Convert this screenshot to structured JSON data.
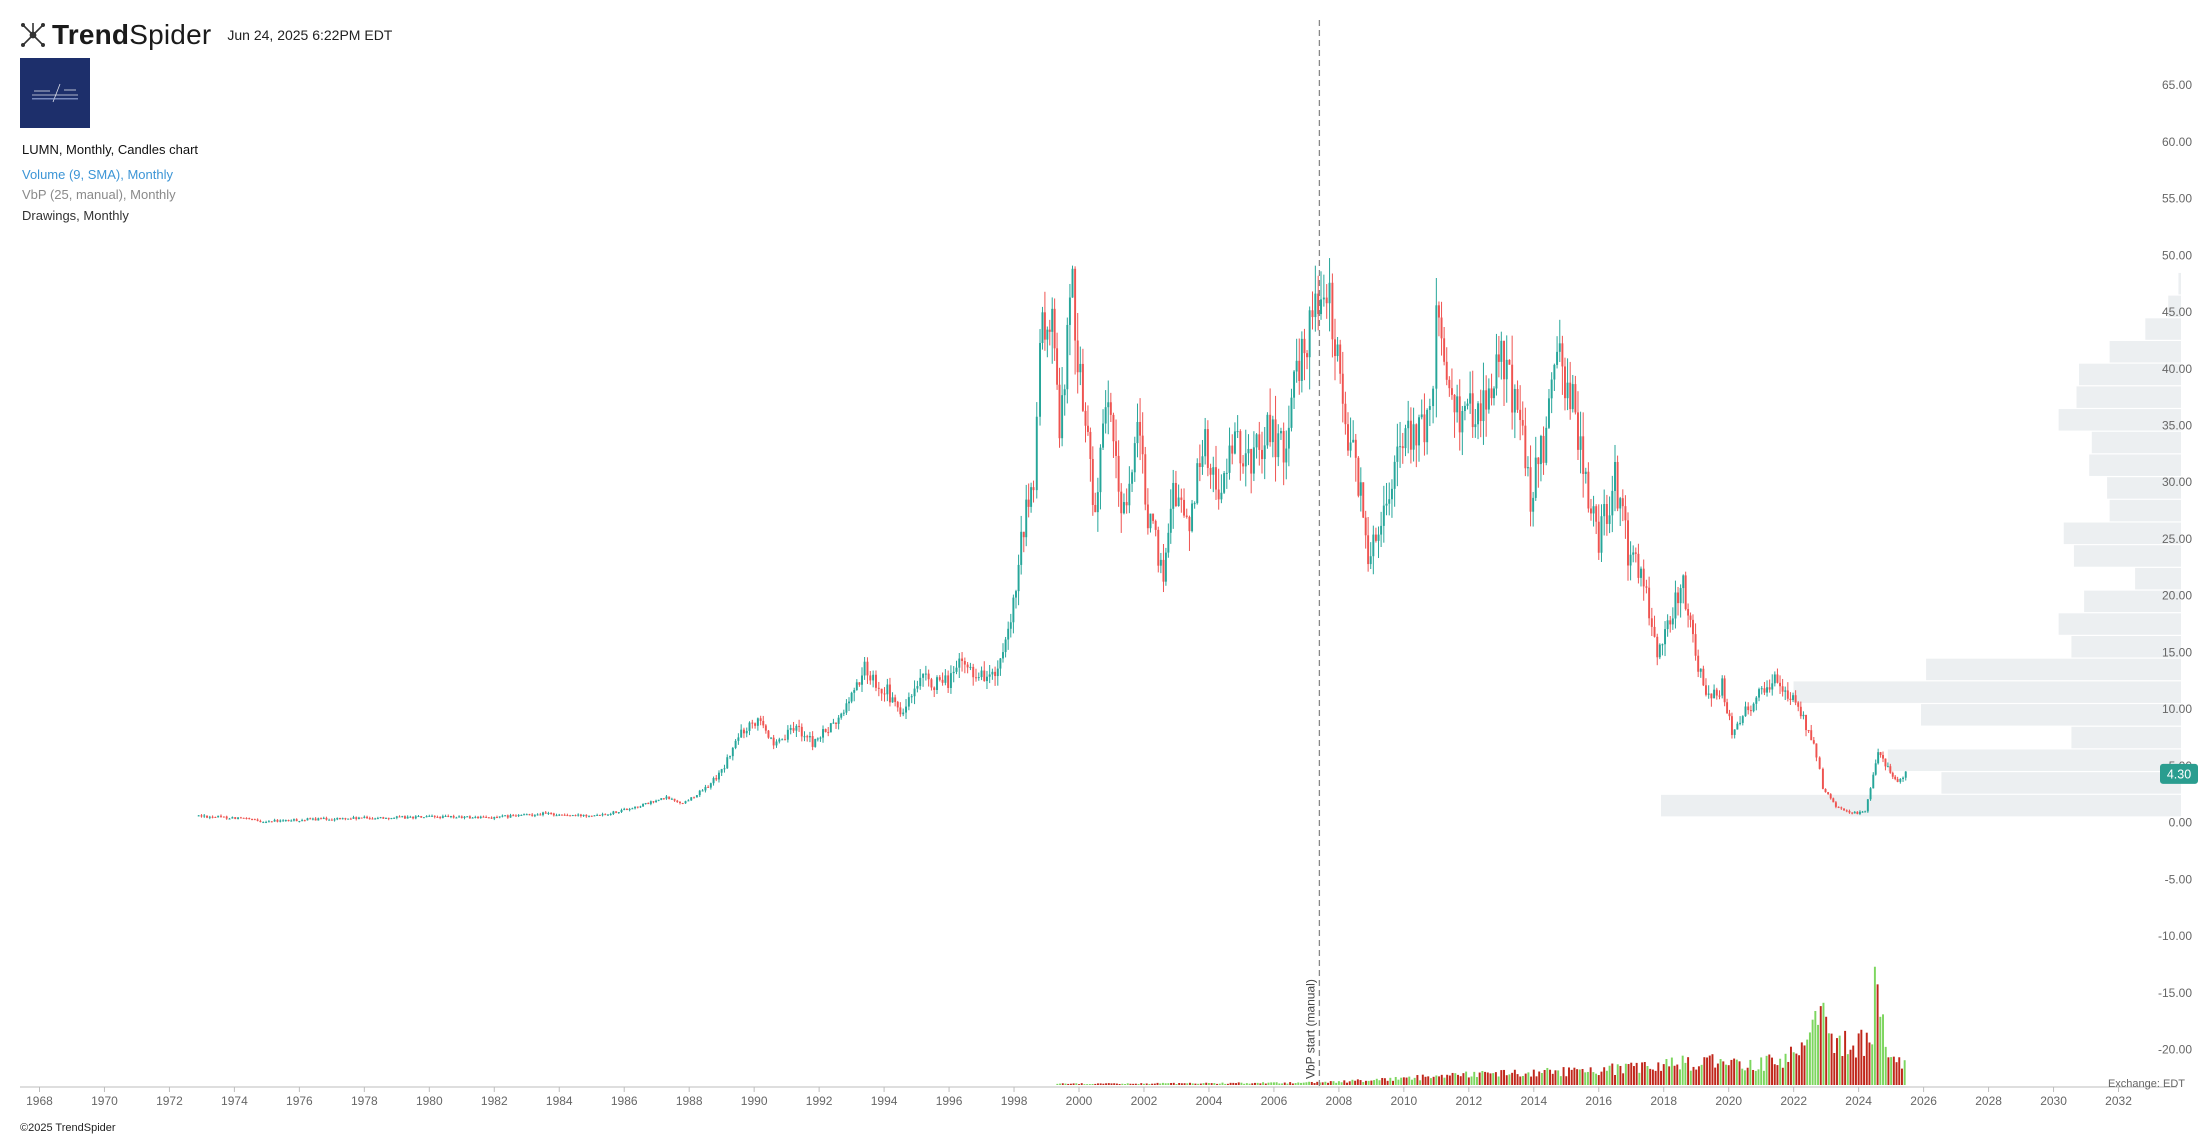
{
  "header": {
    "brand_prefix": "Trend",
    "brand_suffix": "Spider",
    "timestamp": "Jun 24, 2025 6:22PM EDT",
    "logo_icon": "trendspider-logo-icon"
  },
  "legend": {
    "main": "LUMN, Monthly, Candles chart",
    "volume": "Volume (9, SMA), Monthly",
    "vbp": "VbP (25, manual), Monthly",
    "drawings": "Drawings, Monthly"
  },
  "footer": {
    "copyright": "©2025 TrendSpider",
    "exchange": "Exchange: EDT"
  },
  "vbp_marker": {
    "label": "VbP start (manual)",
    "date": 2007.4
  },
  "colors": {
    "up": "#26a69a",
    "down": "#ef5350",
    "vol_up": "#7dd65f",
    "vol_down": "#c0261a",
    "vbp": "#eceff1",
    "price_badge": "#2a9d8f"
  },
  "chart_data": {
    "type": "candlestick",
    "ticker": "LUMN",
    "interval": "Monthly",
    "last_price": "4.30",
    "xlim": [
      1967.4,
      2033.8
    ],
    "ylim": [
      -23.3,
      72.5
    ],
    "x_ticks": [
      "1968",
      "1970",
      "1972",
      "1974",
      "1976",
      "1978",
      "1980",
      "1982",
      "1984",
      "1986",
      "1988",
      "1990",
      "1992",
      "1994",
      "1996",
      "1998",
      "2000",
      "2002",
      "2004",
      "2006",
      "2008",
      "2010",
      "2012",
      "2014",
      "2016",
      "2018",
      "2020",
      "2022",
      "2024",
      "2026",
      "2028",
      "2030",
      "2032"
    ],
    "y_ticks": [
      "65.00",
      "60.00",
      "55.00",
      "50.00",
      "45.00",
      "40.00",
      "35.00",
      "30.00",
      "25.00",
      "20.00",
      "15.00",
      "10.00",
      "5.00",
      "0.00",
      "-5.00",
      "-10.00",
      "-15.00",
      "-20.00"
    ],
    "price_path": [
      [
        1972.9,
        0.6
      ],
      [
        1973.5,
        0.5
      ],
      [
        1974.2,
        0.4
      ],
      [
        1974.8,
        0.1
      ],
      [
        1975.5,
        0.15
      ],
      [
        1976.5,
        0.3
      ],
      [
        1978,
        0.4
      ],
      [
        1980,
        0.5
      ],
      [
        1982,
        0.45
      ],
      [
        1983.5,
        0.8
      ],
      [
        1984.5,
        0.6
      ],
      [
        1985.5,
        0.8
      ],
      [
        1986.5,
        1.5
      ],
      [
        1987.3,
        2.2
      ],
      [
        1987.8,
        1.7
      ],
      [
        1988.5,
        3
      ],
      [
        1989,
        4.5
      ],
      [
        1989.6,
        8
      ],
      [
        1990.2,
        9.5
      ],
      [
        1990.6,
        6.5
      ],
      [
        1991.3,
        8.5
      ],
      [
        1991.8,
        7
      ],
      [
        1992.6,
        9
      ],
      [
        1993.4,
        13.5
      ],
      [
        1994.1,
        11.5
      ],
      [
        1994.5,
        9.5
      ],
      [
        1995.2,
        12.5
      ],
      [
        1995.8,
        12
      ],
      [
        1996.4,
        14
      ],
      [
        1997,
        13
      ],
      [
        1997.5,
        13
      ],
      [
        1997.9,
        17
      ],
      [
        1998.3,
        26
      ],
      [
        1998.6,
        30
      ],
      [
        1998.8,
        42
      ],
      [
        1999.1,
        45
      ],
      [
        1999.4,
        36
      ],
      [
        1999.8,
        47
      ],
      [
        2000.2,
        35
      ],
      [
        2000.5,
        28
      ],
      [
        2000.9,
        37
      ],
      [
        2001.3,
        27
      ],
      [
        2001.8,
        34
      ],
      [
        2002.2,
        26
      ],
      [
        2002.6,
        22
      ],
      [
        2002.9,
        30
      ],
      [
        2003.4,
        26
      ],
      [
        2003.8,
        34
      ],
      [
        2004.3,
        29
      ],
      [
        2004.8,
        33
      ],
      [
        2005.3,
        32
      ],
      [
        2005.8,
        35
      ],
      [
        2006.3,
        33
      ],
      [
        2006.7,
        39
      ],
      [
        2007.1,
        44
      ],
      [
        2007.45,
        48
      ],
      [
        2007.8,
        44
      ],
      [
        2008.2,
        36
      ],
      [
        2008.6,
        30
      ],
      [
        2008.9,
        24
      ],
      [
        2009.3,
        27
      ],
      [
        2009.8,
        33
      ],
      [
        2010.3,
        34
      ],
      [
        2010.8,
        35
      ],
      [
        2011.0,
        44
      ],
      [
        2011.4,
        40
      ],
      [
        2011.8,
        35
      ],
      [
        2012.2,
        37
      ],
      [
        2012.7,
        38
      ],
      [
        2013.0,
        41
      ],
      [
        2013.5,
        37
      ],
      [
        2013.9,
        29
      ],
      [
        2014.3,
        33
      ],
      [
        2014.8,
        41
      ],
      [
        2015.2,
        37
      ],
      [
        2015.6,
        30
      ],
      [
        2016.0,
        25
      ],
      [
        2016.5,
        30
      ],
      [
        2016.9,
        24
      ],
      [
        2017.3,
        22
      ],
      [
        2017.8,
        15
      ],
      [
        2018.2,
        18
      ],
      [
        2018.6,
        21
      ],
      [
        2018.9,
        16
      ],
      [
        2019.3,
        11
      ],
      [
        2019.8,
        12
      ],
      [
        2020.1,
        8
      ],
      [
        2020.6,
        10
      ],
      [
        2021.1,
        12
      ],
      [
        2021.5,
        13
      ],
      [
        2021.9,
        11
      ],
      [
        2022.3,
        9
      ],
      [
        2022.7,
        6
      ],
      [
        2022.9,
        3
      ],
      [
        2023.3,
        1.5
      ],
      [
        2023.8,
        0.8
      ],
      [
        2024.2,
        1
      ],
      [
        2024.45,
        4
      ],
      [
        2024.6,
        6
      ],
      [
        2024.9,
        5
      ],
      [
        2025.2,
        3.5
      ],
      [
        2025.45,
        4.3
      ]
    ],
    "vbp_buckets": [
      {
        "price": 47.5,
        "value": 0.01
      },
      {
        "price": 45.5,
        "value": 0.05
      },
      {
        "price": 43.5,
        "value": 0.14
      },
      {
        "price": 41.5,
        "value": 0.28
      },
      {
        "price": 39.5,
        "value": 0.4
      },
      {
        "price": 37.5,
        "value": 0.41
      },
      {
        "price": 35.5,
        "value": 0.48
      },
      {
        "price": 33.5,
        "value": 0.35
      },
      {
        "price": 31.5,
        "value": 0.36
      },
      {
        "price": 29.5,
        "value": 0.29
      },
      {
        "price": 27.5,
        "value": 0.28
      },
      {
        "price": 25.5,
        "value": 0.46
      },
      {
        "price": 23.5,
        "value": 0.42
      },
      {
        "price": 21.5,
        "value": 0.18
      },
      {
        "price": 19.5,
        "value": 0.38
      },
      {
        "price": 17.5,
        "value": 0.48
      },
      {
        "price": 15.5,
        "value": 0.43
      },
      {
        "price": 13.5,
        "value": 1.0
      },
      {
        "price": 11.5,
        "value": 1.52
      },
      {
        "price": 9.5,
        "value": 1.02
      },
      {
        "price": 7.5,
        "value": 0.43
      },
      {
        "price": 5.5,
        "value": 1.15
      },
      {
        "price": 3.5,
        "value": 0.94
      },
      {
        "price": 1.5,
        "value": 2.04
      }
    ],
    "volume_profile": [
      [
        1999.3,
        0.3
      ],
      [
        2004.0,
        0.4
      ],
      [
        2007.5,
        0.6
      ],
      [
        2009.0,
        1.2
      ],
      [
        2011.0,
        2.0
      ],
      [
        2013.0,
        3.0
      ],
      [
        2015.0,
        3.2
      ],
      [
        2017.0,
        4.0
      ],
      [
        2019.0,
        5.5
      ],
      [
        2021.0,
        5.0
      ],
      [
        2022.0,
        7.0
      ],
      [
        2022.8,
        18.0
      ],
      [
        2023.3,
        12.0
      ],
      [
        2023.8,
        8.0
      ],
      [
        2024.4,
        13.0
      ],
      [
        2024.55,
        26.0
      ],
      [
        2024.8,
        9.0
      ],
      [
        2025.45,
        5.0
      ]
    ],
    "volume_axis_note": "price scale shared"
  }
}
